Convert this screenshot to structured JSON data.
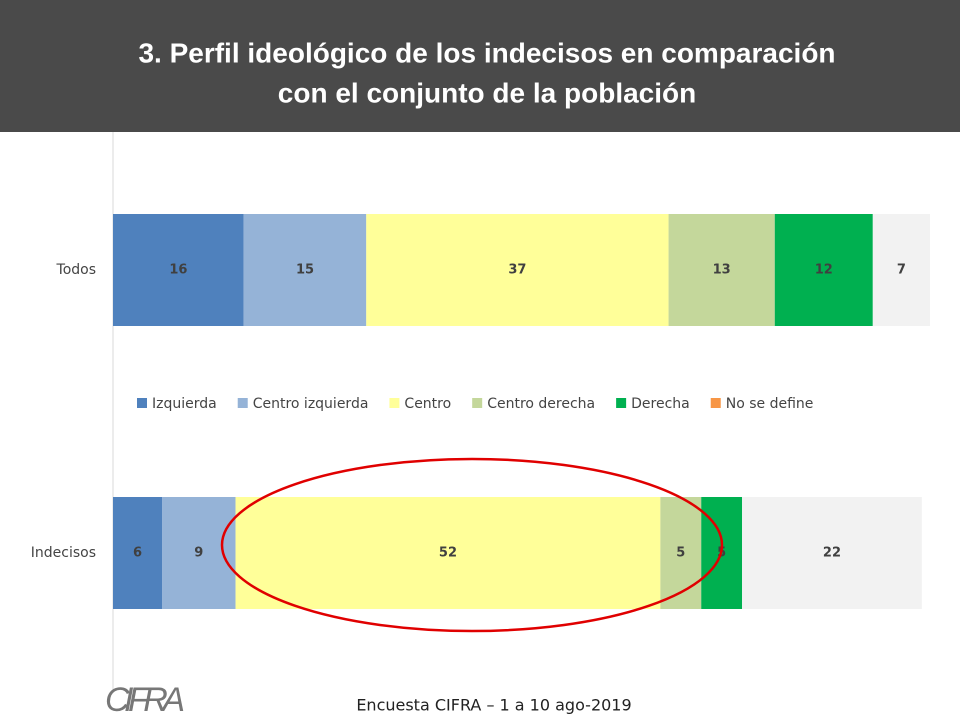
{
  "chart_data": {
    "type": "stacked_barh",
    "title_lines": [
      "3.  Perfil ideológico de los indecisos en comparación",
      "con el conjunto de la población"
    ],
    "categories": [
      "Todos",
      "Indecisos"
    ],
    "xlim": [
      0,
      100
    ],
    "series": [
      {
        "name": "Izquierda",
        "color": "#4f81bd",
        "values": [
          16,
          6
        ]
      },
      {
        "name": "Centro izquierda",
        "color": "#95b3d7",
        "values": [
          15,
          9
        ]
      },
      {
        "name": "Centro",
        "color": "#ffff99",
        "values": [
          37,
          52
        ]
      },
      {
        "name": "Centro derecha",
        "color": "#c4d79b",
        "values": [
          13,
          5
        ]
      },
      {
        "name": "Derecha",
        "color": "#00b050",
        "values": [
          12,
          5
        ]
      },
      {
        "name": "No se define",
        "color": "#f2f2f2",
        "legend_color": "#f79646",
        "values": [
          7,
          22
        ]
      }
    ],
    "footer": "Encuesta CIFRA – 1 a 10 ago-2019",
    "logo": "CIFRA"
  }
}
